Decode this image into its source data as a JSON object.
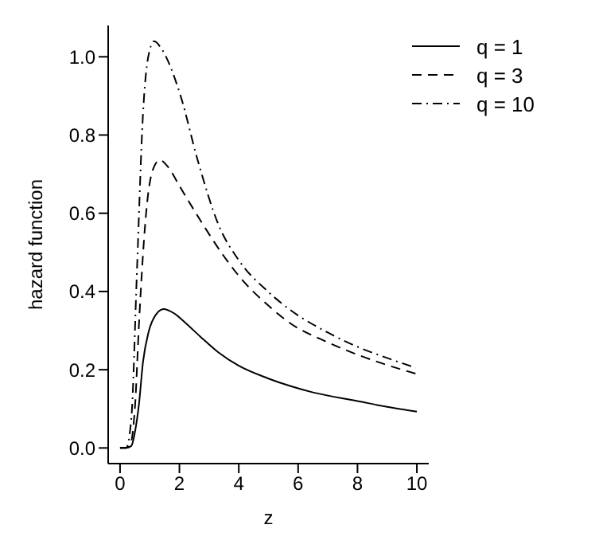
{
  "chart_data": {
    "type": "line",
    "xlabel": "z",
    "ylabel": "hazard function",
    "legend": "top right",
    "marker": "none",
    "xlim": [
      -0.4,
      10.4
    ],
    "xticks": [
      0,
      2,
      4,
      6,
      8,
      10
    ],
    "ylim": [
      -0.04,
      1.08
    ],
    "yticks": [
      {
        "value": 0,
        "label": "0.0"
      },
      {
        "value": 0.2,
        "label": "0.2"
      },
      {
        "value": 0.4,
        "label": "0.4"
      },
      {
        "value": 0.6,
        "label": "0.6"
      },
      {
        "value": 0.8,
        "label": "0.8"
      },
      {
        "value": 1,
        "label": "1.0"
      }
    ],
    "series": [
      {
        "name": "q = 1",
        "color": "#000000",
        "line_style": "solid",
        "x": [
          0,
          0.2,
          0.38,
          0.5,
          0.64,
          0.77,
          0.96,
          1.2,
          1.47,
          1.8,
          2.2,
          2.7,
          3.3,
          4,
          4.98,
          5.75,
          6.5,
          8,
          9,
          10
        ],
        "values": [
          0,
          0,
          0.005,
          0.04,
          0.114,
          0.218,
          0.296,
          0.34,
          0.355,
          0.345,
          0.32,
          0.285,
          0.245,
          0.21,
          0.178,
          0.158,
          0.142,
          0.12,
          0.105,
          0.093
        ]
      },
      {
        "name": "q = 3",
        "color": "#000000",
        "line_style": "dashed",
        "x": [
          0,
          0.2,
          0.35,
          0.51,
          0.64,
          0.89,
          1.1,
          1.34,
          1.6,
          2,
          2.68,
          3.5,
          4,
          4.98,
          5.75,
          7,
          8.05,
          9,
          9.96
        ],
        "values": [
          0,
          0,
          0.01,
          0.113,
          0.32,
          0.61,
          0.71,
          0.736,
          0.72,
          0.67,
          0.585,
          0.49,
          0.44,
          0.365,
          0.318,
          0.27,
          0.237,
          0.212,
          0.19
        ]
      },
      {
        "name": "q = 10",
        "color": "#000000",
        "line_style": "dashdot",
        "x": [
          0,
          0.2,
          0.38,
          0.57,
          0.77,
          0.95,
          1.15,
          1.4,
          2.04,
          2.6,
          3.32,
          4,
          4.98,
          5.75,
          7,
          8.05,
          9,
          9.96
        ],
        "values": [
          0,
          0,
          0.075,
          0.454,
          0.85,
          1.0,
          1.04,
          1.02,
          0.9,
          0.74,
          0.57,
          0.48,
          0.4,
          0.352,
          0.295,
          0.257,
          0.23,
          0.205
        ]
      }
    ]
  }
}
